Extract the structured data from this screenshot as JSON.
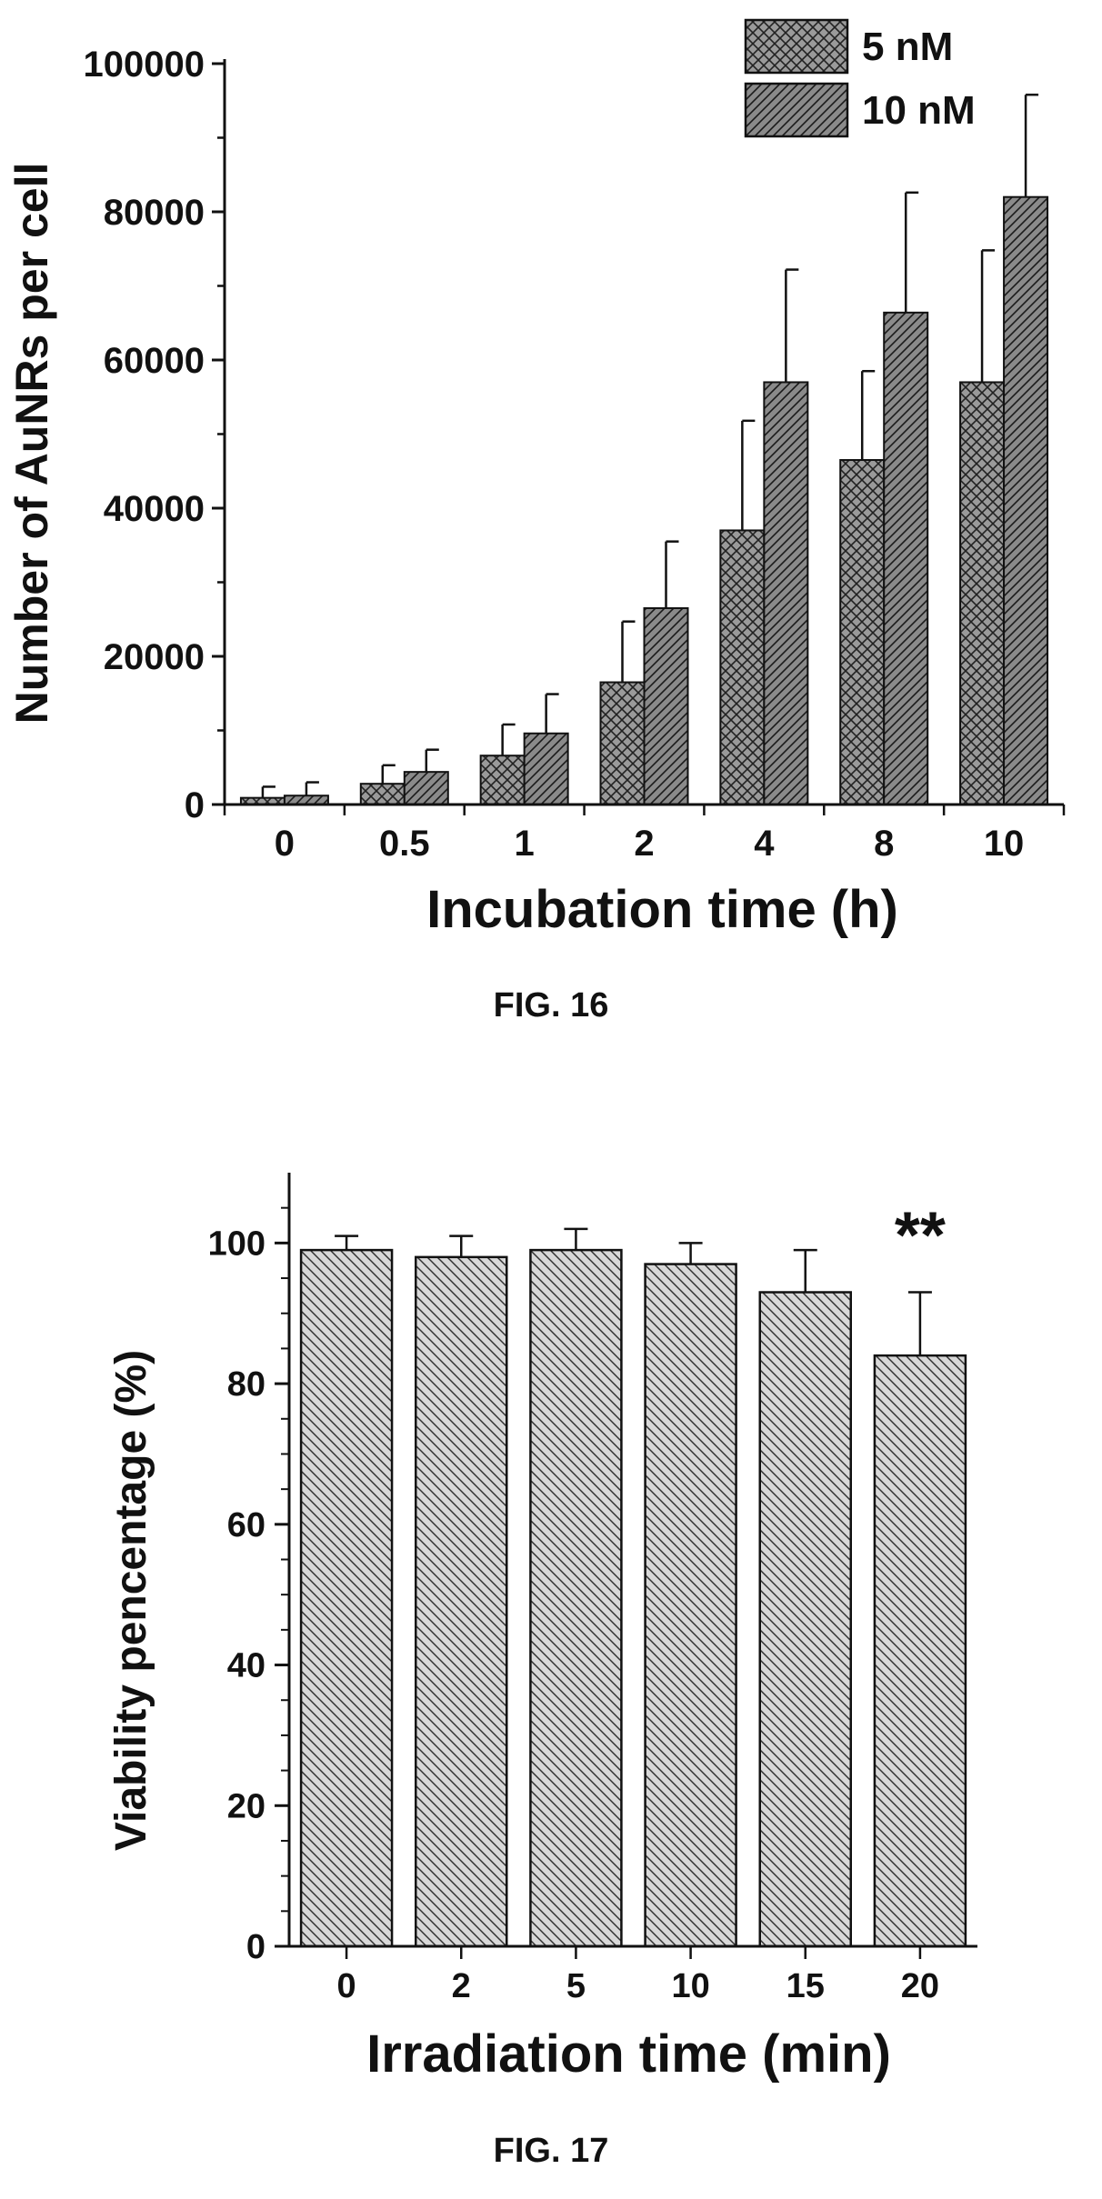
{
  "chart_data": [
    {
      "type": "bar",
      "figure_caption": "FIG. 16",
      "xlabel": "Incubation time (h)",
      "ylabel": "Number of AuNRs per cell",
      "categories": [
        "0",
        "0.5",
        "1",
        "2",
        "4",
        "8",
        "10"
      ],
      "ylim": [
        0,
        100000
      ],
      "yticks": [
        0,
        20000,
        40000,
        60000,
        80000,
        100000
      ],
      "legend_position": "top-right",
      "series": [
        {
          "name": "5 nM",
          "pattern": "crosshatch",
          "values": [
            900,
            2800,
            6600,
            16500,
            37000,
            46500,
            57000
          ],
          "errors": [
            1500,
            2500,
            4200,
            8200,
            14800,
            12000,
            17800
          ]
        },
        {
          "name": "10 nM",
          "pattern": "diagonal",
          "values": [
            1200,
            4400,
            9600,
            26500,
            57000,
            66400,
            82000
          ],
          "errors": [
            1800,
            3000,
            5300,
            9000,
            15200,
            16200,
            13800
          ]
        }
      ],
      "colors": {
        "bar_fill": "#9a9a9a",
        "hatch": "#222222"
      }
    },
    {
      "type": "bar",
      "figure_caption": "FIG. 17",
      "xlabel": "Irradiation time (min)",
      "ylabel": "Viability pencentage (%)",
      "categories": [
        "0",
        "2",
        "5",
        "10",
        "15",
        "20"
      ],
      "ylim": [
        0,
        110
      ],
      "yticks": [
        0,
        20,
        40,
        60,
        80,
        100
      ],
      "values": [
        99,
        98,
        99,
        97,
        93,
        84
      ],
      "errors": [
        2,
        3,
        3,
        3,
        6,
        9
      ],
      "annotation": {
        "text": "**",
        "category": "20"
      },
      "colors": {
        "bar_fill": "#d8d8d8",
        "hatch": "#333333"
      }
    }
  ]
}
